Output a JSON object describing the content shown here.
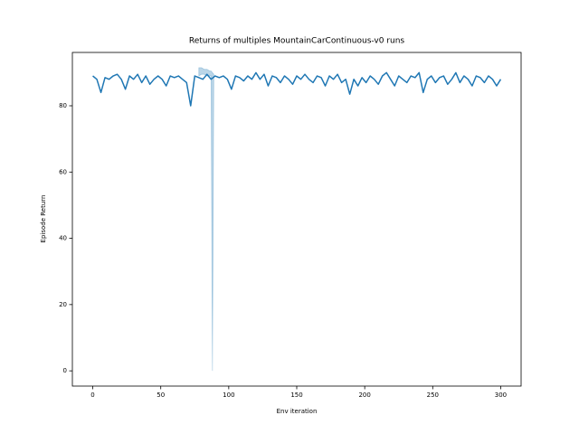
{
  "chart_data": {
    "type": "line",
    "title": "Returns of multiples MountainCarContinuous-v0 runs",
    "x_label": "Env iteration",
    "y_label": "Episode Return",
    "color": "#1f77b4",
    "x": [
      0,
      3,
      6,
      9,
      12,
      15,
      18,
      21,
      24,
      27,
      30,
      33,
      36,
      39,
      42,
      45,
      48,
      51,
      54,
      57,
      60,
      63,
      66,
      69,
      72,
      75,
      78,
      81,
      84,
      87,
      90,
      93,
      96,
      99,
      102,
      105,
      108,
      111,
      114,
      117,
      120,
      123,
      126,
      129,
      132,
      135,
      138,
      141,
      144,
      147,
      150,
      153,
      156,
      159,
      162,
      165,
      168,
      171,
      174,
      177,
      180,
      183,
      186,
      189,
      192,
      195,
      198,
      201,
      204,
      207,
      210,
      213,
      216,
      219,
      222,
      225,
      228,
      231,
      234,
      237,
      240,
      243,
      246,
      249,
      252,
      255,
      258,
      261,
      264,
      267,
      270,
      273,
      276,
      279,
      282,
      285,
      288,
      291,
      294,
      297,
      300
    ],
    "values": [
      89,
      88,
      84,
      88.5,
      88,
      89,
      89.5,
      88,
      85,
      89,
      88,
      89.5,
      87,
      89,
      86.5,
      88,
      89,
      88,
      86,
      89,
      88.5,
      89,
      88,
      87,
      80,
      89,
      88.5,
      88,
      89.5,
      88,
      89,
      88.5,
      89,
      88,
      85,
      89,
      88.5,
      87.5,
      89,
      88,
      90,
      88,
      89.5,
      86,
      89,
      88.5,
      87,
      89,
      88,
      86.5,
      89,
      88,
      89.5,
      88,
      87,
      89,
      88.5,
      86,
      89,
      88,
      89.5,
      87,
      88,
      83.5,
      88,
      86,
      88.5,
      87,
      89,
      88,
      86.5,
      89,
      90,
      88,
      86,
      89,
      88,
      87,
      89,
      88.5,
      90,
      84,
      88,
      89,
      87,
      88.5,
      89,
      86.5,
      88,
      90,
      87,
      89,
      88,
      86,
      89,
      88.5,
      87,
      89,
      88,
      86,
      88
    ],
    "band_x": [
      78,
      80,
      82,
      84,
      86,
      87,
      88,
      89
    ],
    "band_lower": [
      89,
      89.5,
      89.5,
      89,
      89,
      89,
      0,
      89
    ],
    "band_upper": [
      91.5,
      91.5,
      91,
      91,
      90.5,
      90.5,
      90,
      89.5
    ],
    "xlim": [
      -15,
      315
    ],
    "ylim": [
      -4.6,
      96.1
    ],
    "xticks": [
      0,
      50,
      100,
      150,
      200,
      250,
      300
    ],
    "yticks": [
      0,
      20,
      40,
      60,
      80
    ]
  }
}
